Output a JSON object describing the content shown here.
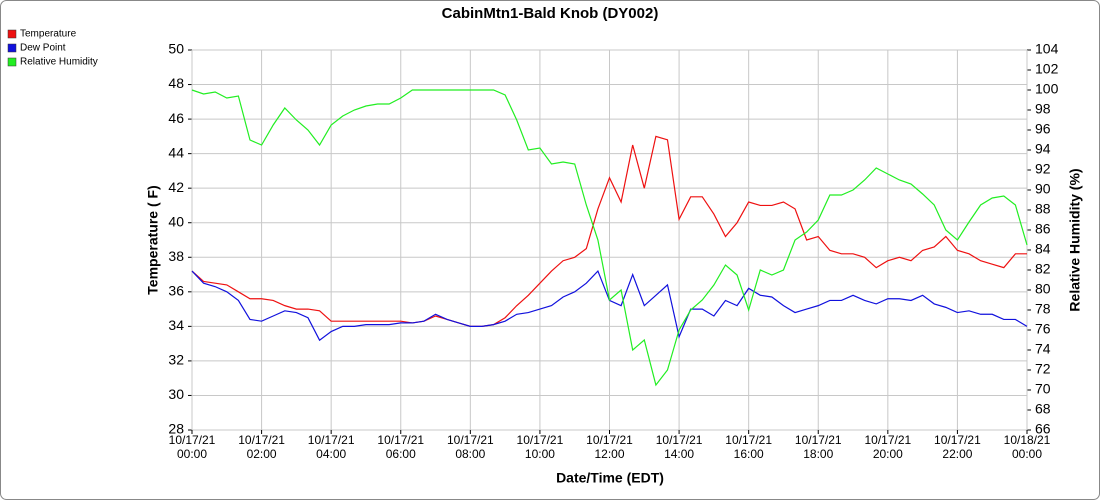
{
  "chart_data": {
    "type": "line",
    "title": "CabinMtn1-Bald Knob (DY002)",
    "xlabel": "Date/Time (EDT)",
    "ylabel": "Temperature ( F)",
    "y2label": "Relative Humidity (%)",
    "x": [
      0,
      20,
      40,
      60,
      80,
      100,
      120,
      140,
      160,
      180,
      200,
      220,
      240,
      260,
      280,
      300,
      320,
      340,
      360,
      380,
      400,
      420,
      440,
      460,
      480,
      500,
      520,
      540,
      560,
      580,
      600,
      620,
      640,
      660,
      680,
      700,
      720,
      740,
      760,
      780,
      800,
      820,
      840,
      860,
      880,
      900,
      920,
      940,
      960,
      980,
      1000,
      1020,
      1040,
      1060,
      1080,
      1100,
      1120,
      1140,
      1160,
      1180,
      1200,
      1220,
      1240,
      1260,
      1280,
      1300,
      1320,
      1340,
      1360,
      1380,
      1400,
      1420,
      1440
    ],
    "xlim": [
      0,
      1440
    ],
    "xticks": [
      {
        "value": 0,
        "label": "10/17/21 00:00"
      },
      {
        "value": 120,
        "label": "10/17/21 02:00"
      },
      {
        "value": 240,
        "label": "10/17/21 04:00"
      },
      {
        "value": 360,
        "label": "10/17/21 06:00"
      },
      {
        "value": 480,
        "label": "10/17/21 08:00"
      },
      {
        "value": 600,
        "label": "10/17/21 10:00"
      },
      {
        "value": 720,
        "label": "10/17/21 12:00"
      },
      {
        "value": 840,
        "label": "10/17/21 14:00"
      },
      {
        "value": 960,
        "label": "10/17/21 16:00"
      },
      {
        "value": 1080,
        "label": "10/17/21 18:00"
      },
      {
        "value": 1200,
        "label": "10/17/21 20:00"
      },
      {
        "value": 1320,
        "label": "10/17/21 22:00"
      },
      {
        "value": 1440,
        "label": "10/18/21 00:00"
      }
    ],
    "ylim": [
      28,
      50
    ],
    "yticks": [
      28,
      30,
      32,
      34,
      36,
      38,
      40,
      42,
      44,
      46,
      48,
      50
    ],
    "y2lim": [
      66,
      104
    ],
    "y2ticks": [
      66,
      68,
      70,
      72,
      74,
      76,
      78,
      80,
      82,
      84,
      86,
      88,
      90,
      92,
      94,
      96,
      98,
      100,
      102,
      104
    ],
    "grid": true,
    "legend": "top-left",
    "series": [
      {
        "name": "Temperature",
        "color": "#ee1111",
        "values": [
          37.2,
          36.6,
          36.5,
          36.4,
          36.0,
          35.6,
          35.6,
          35.5,
          35.2,
          35.0,
          35.0,
          34.9,
          34.3,
          34.3,
          34.3,
          34.3,
          34.3,
          34.3,
          34.3,
          34.2,
          34.3,
          34.6,
          34.4,
          34.2,
          34.0,
          34.0,
          34.1,
          34.5,
          35.2,
          35.8,
          36.5,
          37.2,
          37.8,
          38.0,
          38.5,
          40.8,
          42.6,
          41.2,
          44.5,
          42.0,
          45.0,
          44.8,
          40.2,
          41.5,
          41.5,
          40.5,
          39.2,
          40.0,
          41.2,
          41.0,
          41.0,
          41.2,
          40.8,
          39.0,
          39.2,
          38.4,
          38.2,
          38.2,
          38.0,
          37.4,
          37.8,
          38.0,
          37.8,
          38.4,
          38.6,
          39.2,
          38.4,
          38.2,
          37.8,
          37.6,
          37.4,
          38.2,
          38.2
        ]
      },
      {
        "name": "Dew Point",
        "color": "#1111dd",
        "values": [
          37.2,
          36.5,
          36.3,
          36.0,
          35.5,
          34.4,
          34.3,
          34.6,
          34.9,
          34.8,
          34.5,
          33.2,
          33.7,
          34.0,
          34.0,
          34.1,
          34.1,
          34.1,
          34.2,
          34.2,
          34.3,
          34.7,
          34.4,
          34.2,
          34.0,
          34.0,
          34.1,
          34.3,
          34.7,
          34.8,
          35.0,
          35.2,
          35.7,
          36.0,
          36.5,
          37.2,
          35.5,
          35.2,
          37.0,
          35.2,
          35.8,
          36.4,
          33.4,
          35.0,
          35.0,
          34.6,
          35.5,
          35.2,
          36.2,
          35.8,
          35.7,
          35.2,
          34.8,
          35.0,
          35.2,
          35.5,
          35.5,
          35.8,
          35.5,
          35.3,
          35.6,
          35.6,
          35.5,
          35.8,
          35.3,
          35.1,
          34.8,
          34.9,
          34.7,
          34.7,
          34.4,
          34.4,
          34.0
        ]
      },
      {
        "name": "Relative Humidity",
        "color": "#22ee22",
        "axis": "y2",
        "values": [
          100,
          99.6,
          99.8,
          99.2,
          99.4,
          95.0,
          94.5,
          96.5,
          98.2,
          97.0,
          96.0,
          94.5,
          96.5,
          97.4,
          98.0,
          98.4,
          98.6,
          98.6,
          99.2,
          100,
          100,
          100,
          100,
          100,
          100,
          100,
          100,
          99.5,
          97.0,
          94.0,
          94.2,
          92.6,
          92.8,
          92.6,
          88.5,
          85.0,
          79.0,
          80.0,
          74.0,
          75.0,
          70.5,
          72.0,
          76.0,
          78.0,
          79.0,
          80.5,
          82.5,
          81.5,
          78.0,
          82.0,
          81.5,
          82.0,
          85.0,
          85.8,
          87.0,
          89.5,
          89.5,
          90.0,
          91.0,
          92.2,
          91.6,
          91.0,
          90.6,
          89.6,
          88.5,
          86.0,
          85.0,
          86.8,
          88.5,
          89.2,
          89.4,
          88.5,
          84.5
        ]
      }
    ]
  }
}
